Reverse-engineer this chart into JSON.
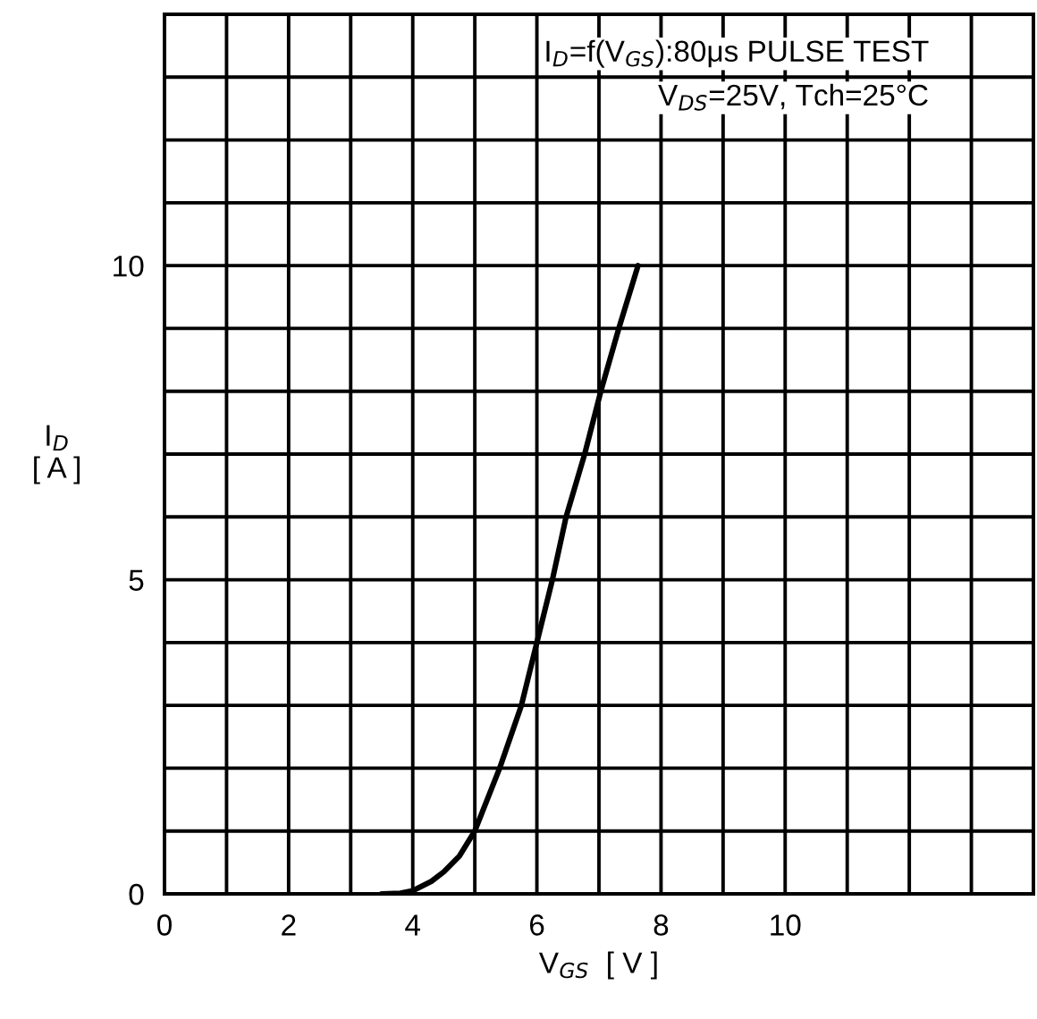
{
  "chart_data": {
    "type": "line",
    "xlabel": "V$_{GS}$  [ V ]",
    "ylabel": "I$_{D}$\n[ A ]",
    "annotations": [
      "I$_{D}$=f(V$_{GS}$):80μs PULSE TEST",
      "V$_{DS}$=25V, Tch=25°C"
    ],
    "series": [
      {
        "color": "#000000",
        "x": [
          3.5,
          3.8,
          4,
          4.3,
          4.5,
          4.75,
          5,
          5.4,
          5.75,
          6,
          6.25,
          6.47,
          6.77,
          7.03,
          7.32,
          7.63
        ],
        "values": [
          0,
          0.01,
          0.05,
          0.2,
          0.35,
          0.6,
          1.0,
          2.0,
          3.0,
          4.0,
          5.0,
          6,
          7,
          8,
          9,
          10
        ]
      }
    ],
    "xlim": [
      0,
      14
    ],
    "ylim": [
      0,
      14
    ],
    "xticks": [
      0,
      {
        "value": 1,
        "label": null
      },
      2,
      {
        "value": 3,
        "label": null
      },
      4,
      {
        "value": 5,
        "label": null
      },
      6,
      {
        "value": 7,
        "label": null
      },
      8,
      {
        "value": 9,
        "label": null
      },
      10,
      {
        "value": 11,
        "label": null
      },
      {
        "value": 12,
        "label": null
      },
      {
        "value": 13,
        "label": null
      },
      {
        "value": 14,
        "label": null
      }
    ],
    "yticks": [
      0,
      {
        "value": 1,
        "label": null
      },
      {
        "value": 2,
        "label": null
      },
      {
        "value": 3,
        "label": null
      },
      {
        "value": 4,
        "label": null
      },
      5,
      {
        "value": 6,
        "label": null
      },
      {
        "value": 7,
        "label": null
      },
      {
        "value": 8,
        "label": null
      },
      {
        "value": 9,
        "label": null
      },
      10,
      {
        "value": 11,
        "label": null
      },
      {
        "value": 12,
        "label": null
      },
      {
        "value": 13,
        "label": null
      },
      {
        "value": 14,
        "label": null
      }
    ],
    "grid": true,
    "legend": false,
    "marker": "none",
    "line_style": "solid"
  }
}
